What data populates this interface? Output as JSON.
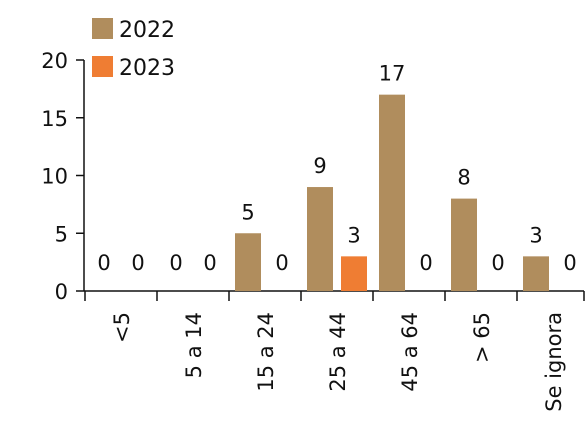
{
  "chart_data": {
    "type": "bar",
    "categories": [
      "<5",
      "5 a 14",
      "15 a 24",
      "25 a 44",
      "45 a 64",
      "> 65",
      "Se ignora"
    ],
    "series": [
      {
        "name": "2022",
        "values": [
          0,
          0,
          5,
          9,
          17,
          8,
          3
        ],
        "color": "#b08d5d"
      },
      {
        "name": "2023",
        "values": [
          0,
          0,
          0,
          3,
          0,
          0,
          0
        ],
        "color": "#ef7d33"
      }
    ],
    "yticks": [
      0,
      5,
      10,
      15,
      20
    ],
    "ylim": [
      0,
      20
    ],
    "data_labels": true,
    "legend_position": "top-left",
    "grid": false,
    "title": "",
    "xlabel": "",
    "ylabel": ""
  }
}
